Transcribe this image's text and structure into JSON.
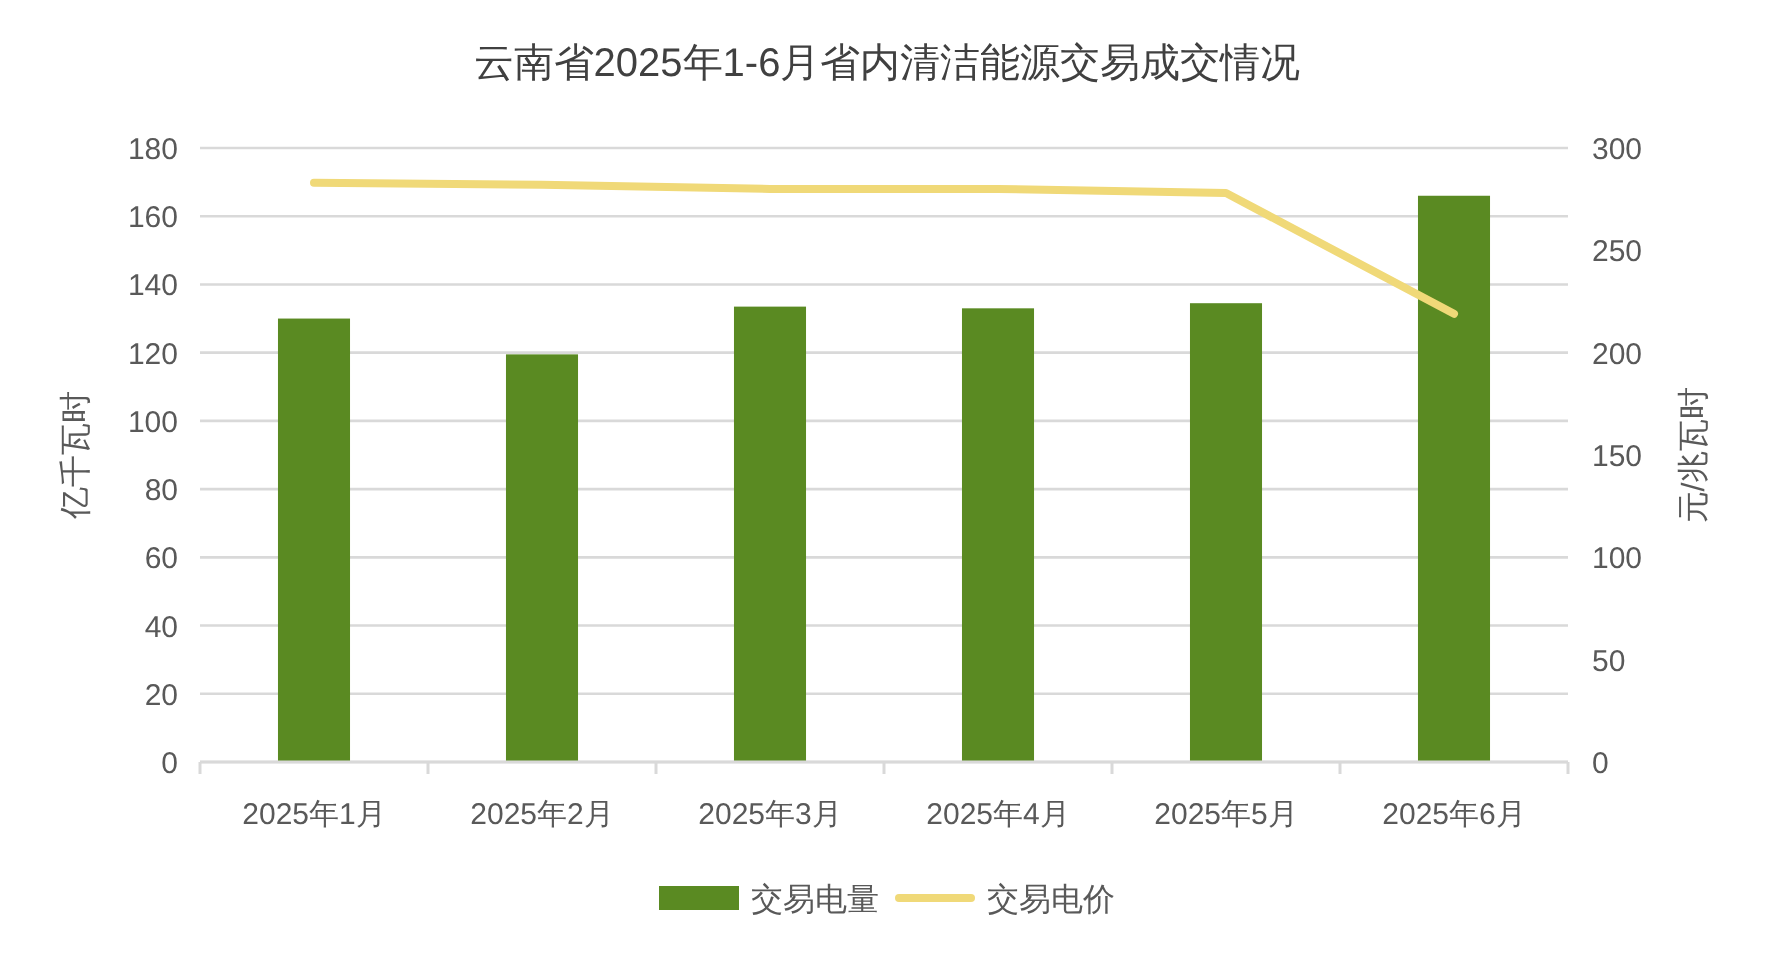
{
  "chart_data": {
    "type": "bar",
    "title": "云南省2025年1-6月省内清洁能源交易成交情况",
    "categories": [
      "2025年1月",
      "2025年2月",
      "2025年3月",
      "2025年4月",
      "2025年5月",
      "2025年6月"
    ],
    "ylabel": "亿千瓦时",
    "y2label": "元/兆瓦时",
    "ylim": [
      0,
      180
    ],
    "yticks": [
      0,
      20,
      40,
      60,
      80,
      100,
      120,
      140,
      160,
      180
    ],
    "y2lim": [
      0,
      300
    ],
    "y2ticks": [
      0,
      50,
      100,
      150,
      200,
      250,
      300
    ],
    "grid": "y",
    "legend": "bottom",
    "series": [
      {
        "name": "交易电量",
        "color": "#5a8a22",
        "values": [
          130,
          119.5,
          133.5,
          133,
          134.5,
          166
        ]
      },
      {
        "name": "交易电价",
        "type": "line",
        "axis": "y2",
        "color": "#f0d978",
        "values": [
          283,
          282,
          280,
          280,
          278,
          219
        ]
      }
    ]
  }
}
